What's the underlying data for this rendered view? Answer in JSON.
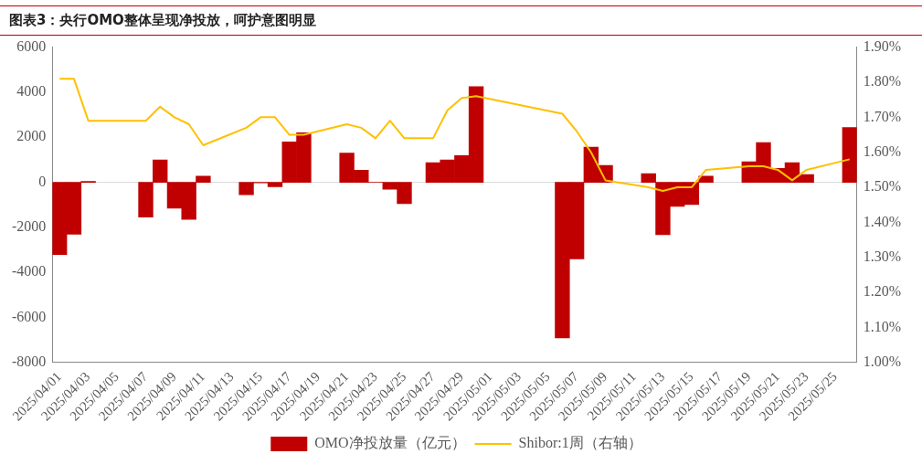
{
  "chart_data": {
    "type": "bar",
    "title": "图表3：央行OMO整体呈现净投放，呵护意图明显",
    "categories": [
      "2025/04/01",
      null,
      "2025/04/03",
      null,
      "2025/04/05",
      null,
      "2025/04/07",
      null,
      "2025/04/09",
      null,
      "2025/04/11",
      null,
      "2025/04/13",
      null,
      "2025/04/15",
      null,
      "2025/04/17",
      null,
      "2025/04/19",
      null,
      "2025/04/21",
      null,
      "2025/04/23",
      null,
      "2025/04/25",
      null,
      "2025/04/27",
      null,
      "2025/04/29",
      null,
      "2025/05/01",
      null,
      "2025/05/03",
      null,
      "2025/05/05",
      null,
      "2025/05/07",
      null,
      "2025/05/09",
      null,
      "2025/05/11",
      null,
      "2025/05/13",
      null,
      "2025/05/15",
      null,
      "2025/05/17",
      null,
      "2025/05/19",
      null,
      "2025/05/21",
      null,
      "2025/05/23",
      null,
      "2025/05/25",
      null
    ],
    "series": [
      {
        "name": "OMO净投放量（亿元）",
        "color": "#c00000",
        "values": [
          -3200,
          -2300,
          40,
          null,
          null,
          null,
          -1540,
          990,
          -1150,
          -1640,
          270,
          null,
          null,
          -550,
          -20,
          -190,
          1800,
          2200,
          null,
          null,
          1300,
          540,
          0,
          -310,
          -950,
          null,
          870,
          990,
          1190,
          4250,
          null,
          null,
          null,
          null,
          null,
          -6900,
          -3400,
          1560,
          750,
          null,
          null,
          390,
          -2320,
          -1070,
          -990,
          270,
          null,
          null,
          910,
          1760,
          620,
          870,
          350,
          null,
          null,
          2430
        ]
      },
      {
        "name": "Shibor:1周（右轴）",
        "type": "line",
        "axis": "y2",
        "color": "#ffc000",
        "values": [
          1.81,
          1.81,
          1.69,
          null,
          null,
          null,
          1.69,
          1.73,
          1.7,
          1.68,
          1.62,
          null,
          null,
          1.67,
          1.7,
          1.7,
          1.65,
          1.65,
          null,
          null,
          1.68,
          1.67,
          1.64,
          1.69,
          1.64,
          null,
          1.64,
          1.72,
          1.755,
          1.76,
          null,
          null,
          null,
          null,
          null,
          1.71,
          1.66,
          1.6,
          1.52,
          null,
          null,
          1.5,
          1.49,
          1.5,
          1.5,
          1.55,
          null,
          null,
          1.56,
          1.56,
          1.55,
          1.52,
          1.55,
          null,
          null,
          1.58
        ]
      }
    ],
    "ylim": [
      -8000,
      6000
    ],
    "yticks": [
      -8000,
      -6000,
      -4000,
      -2000,
      0,
      2000,
      4000,
      6000
    ],
    "y2lim": [
      1.0,
      1.9
    ],
    "y2ticks": [
      {
        "value": 1.0,
        "label": "1.00%"
      },
      {
        "value": 1.1,
        "label": "1.10%"
      },
      {
        "value": 1.2,
        "label": "1.20%"
      },
      {
        "value": 1.3,
        "label": "1.30%"
      },
      {
        "value": 1.4,
        "label": "1.40%"
      },
      {
        "value": 1.5,
        "label": "1.50%"
      },
      {
        "value": 1.6,
        "label": "1.60%"
      },
      {
        "value": 1.7,
        "label": "1.70%"
      },
      {
        "value": 1.8,
        "label": "1.80%"
      },
      {
        "value": 1.9,
        "label": "1.90%"
      }
    ],
    "legend": "bottom",
    "marker": "none"
  }
}
